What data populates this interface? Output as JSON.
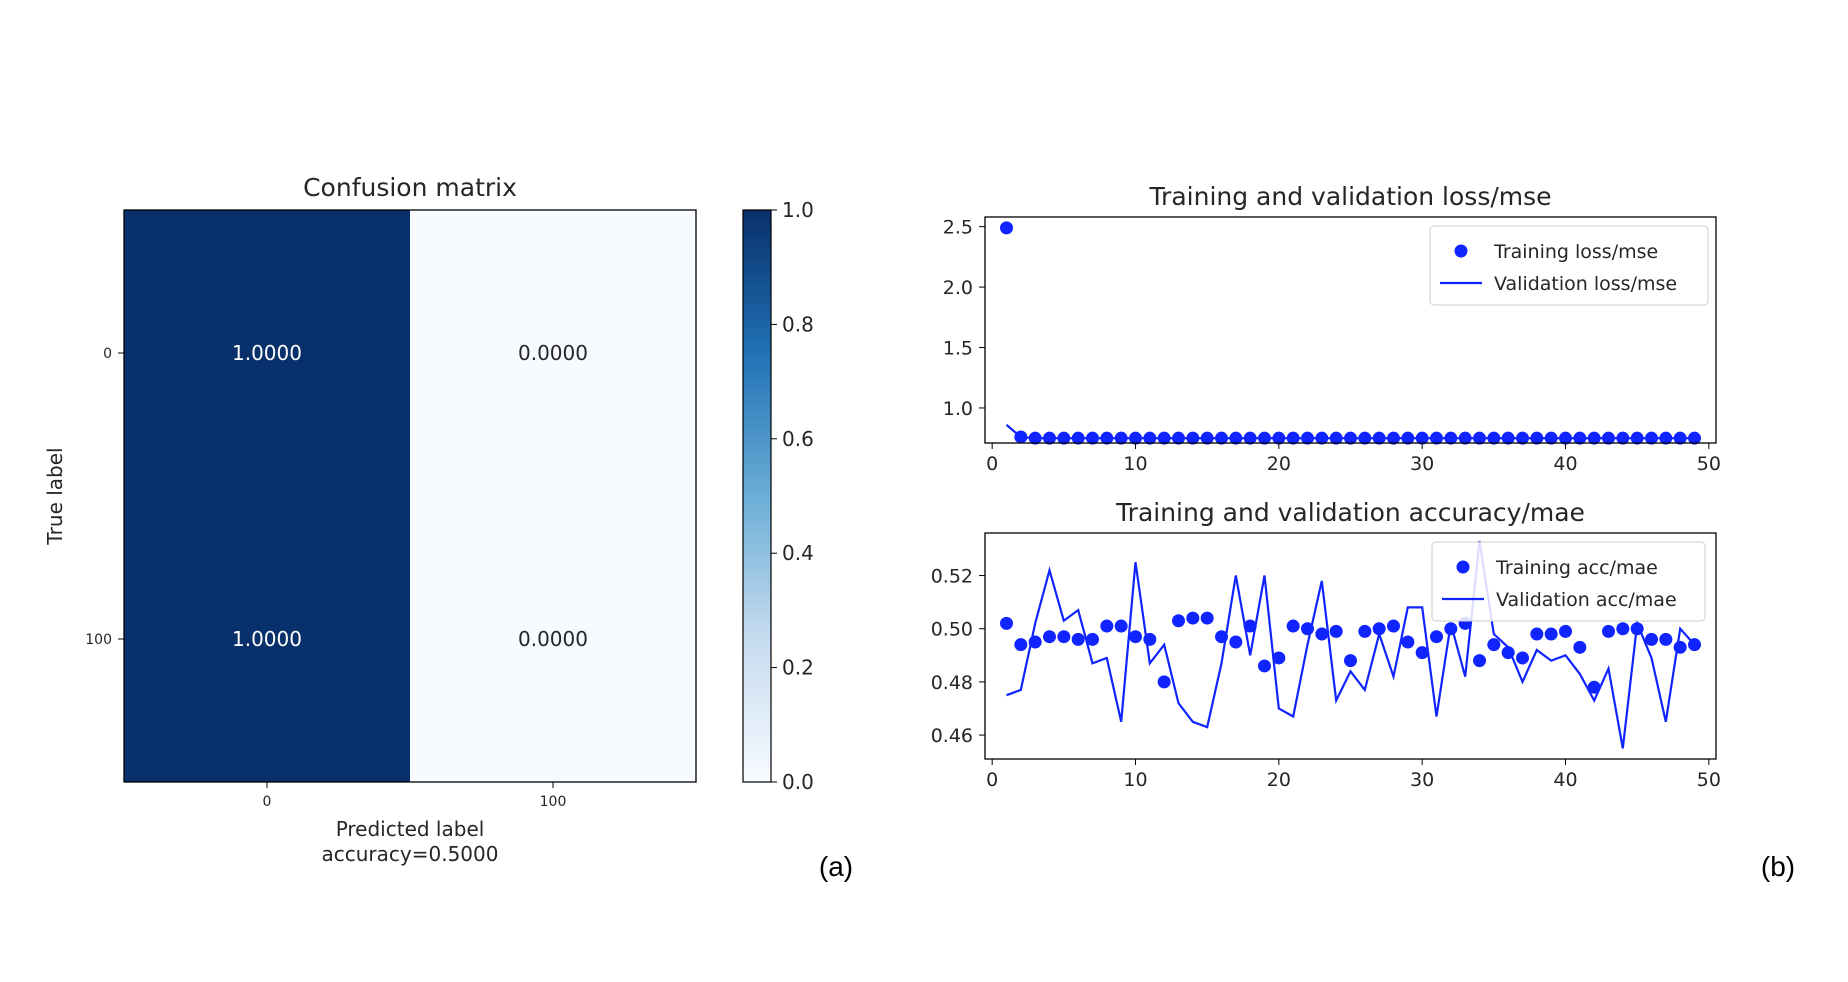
{
  "panel_labels": [
    "(a)",
    "(b)"
  ],
  "colors": {
    "cm_dark": "#08306b",
    "cm_light": "#f7fbff",
    "series": "#1024ff",
    "axis": "#000000"
  },
  "chart_data": [
    {
      "type": "heatmap",
      "title": "Confusion matrix",
      "xlabel": "Predicted label",
      "xlabel_sub": "accuracy=0.5000",
      "ylabel": "True label",
      "x_ticks": [
        "0",
        "100"
      ],
      "y_ticks": [
        "0",
        "100"
      ],
      "matrix": [
        [
          1.0,
          0.0
        ],
        [
          1.0,
          0.0
        ]
      ],
      "cell_labels": [
        [
          "1.0000",
          "0.0000"
        ],
        [
          "1.0000",
          "0.0000"
        ]
      ],
      "colormap": "Blues",
      "colorbar": {
        "range": [
          0,
          1
        ],
        "ticks": [
          "0.0",
          "0.2",
          "0.4",
          "0.6",
          "0.8",
          "1.0"
        ]
      }
    },
    {
      "type": "scatter",
      "title": "Training and validation loss/mse",
      "xlim": [
        -0.5,
        50.5
      ],
      "ylim": [
        0.71,
        2.58
      ],
      "x_ticks": [
        0,
        10,
        20,
        30,
        40,
        50
      ],
      "y_ticks": [
        1.0,
        1.5,
        2.0,
        2.5
      ],
      "y_tick_labels": [
        "1.0",
        "1.5",
        "2.0",
        "2.5"
      ],
      "legend": {
        "position": "upper right"
      },
      "x": [
        1,
        2,
        3,
        4,
        5,
        6,
        7,
        8,
        9,
        10,
        11,
        12,
        13,
        14,
        15,
        16,
        17,
        18,
        19,
        20,
        21,
        22,
        23,
        24,
        25,
        26,
        27,
        28,
        29,
        30,
        31,
        32,
        33,
        34,
        35,
        36,
        37,
        38,
        39,
        40,
        41,
        42,
        43,
        44,
        45,
        46,
        47,
        48,
        49
      ],
      "series": [
        {
          "name": "Training loss/mse",
          "style": "points",
          "values": [
            2.49,
            0.76,
            0.75,
            0.75,
            0.75,
            0.75,
            0.75,
            0.75,
            0.75,
            0.75,
            0.75,
            0.75,
            0.75,
            0.75,
            0.75,
            0.75,
            0.75,
            0.75,
            0.75,
            0.75,
            0.75,
            0.75,
            0.75,
            0.75,
            0.75,
            0.75,
            0.75,
            0.75,
            0.75,
            0.75,
            0.75,
            0.75,
            0.75,
            0.75,
            0.75,
            0.75,
            0.75,
            0.75,
            0.75,
            0.75,
            0.75,
            0.75,
            0.75,
            0.75,
            0.75,
            0.75,
            0.75,
            0.75,
            0.75
          ]
        },
        {
          "name": "Validation loss/mse",
          "style": "line",
          "values": [
            0.86,
            0.76,
            0.75,
            0.75,
            0.75,
            0.75,
            0.75,
            0.75,
            0.75,
            0.75,
            0.75,
            0.75,
            0.75,
            0.75,
            0.75,
            0.75,
            0.75,
            0.75,
            0.75,
            0.75,
            0.75,
            0.75,
            0.75,
            0.75,
            0.75,
            0.75,
            0.75,
            0.75,
            0.75,
            0.75,
            0.75,
            0.75,
            0.75,
            0.75,
            0.75,
            0.75,
            0.75,
            0.75,
            0.75,
            0.75,
            0.75,
            0.75,
            0.75,
            0.75,
            0.75,
            0.75,
            0.75,
            0.75,
            0.75
          ]
        }
      ]
    },
    {
      "type": "scatter",
      "title": "Training and validation accuracy/mae",
      "xlim": [
        -0.5,
        50.5
      ],
      "ylim": [
        0.451,
        0.536
      ],
      "x_ticks": [
        0,
        10,
        20,
        30,
        40,
        50
      ],
      "y_ticks": [
        0.46,
        0.48,
        0.5,
        0.52
      ],
      "y_tick_labels": [
        "0.46",
        "0.48",
        "0.50",
        "0.52"
      ],
      "legend": {
        "position": "upper right"
      },
      "x": [
        1,
        2,
        3,
        4,
        5,
        6,
        7,
        8,
        9,
        10,
        11,
        12,
        13,
        14,
        15,
        16,
        17,
        18,
        19,
        20,
        21,
        22,
        23,
        24,
        25,
        26,
        27,
        28,
        29,
        30,
        31,
        32,
        33,
        34,
        35,
        36,
        37,
        38,
        39,
        40,
        41,
        42,
        43,
        44,
        45,
        46,
        47,
        48,
        49
      ],
      "series": [
        {
          "name": "Training acc/mae",
          "style": "points",
          "values": [
            0.502,
            0.494,
            0.495,
            0.497,
            0.497,
            0.496,
            0.496,
            0.501,
            0.501,
            0.497,
            0.496,
            0.48,
            0.503,
            0.504,
            0.504,
            0.497,
            0.495,
            0.501,
            0.486,
            0.489,
            0.501,
            0.5,
            0.498,
            0.499,
            0.488,
            0.499,
            0.5,
            0.501,
            0.495,
            0.491,
            0.497,
            0.5,
            0.502,
            0.488,
            0.494,
            0.491,
            0.489,
            0.498,
            0.498,
            0.499,
            0.493,
            0.478,
            0.499,
            0.5,
            0.5,
            0.496,
            0.496,
            0.493,
            0.494
          ]
        },
        {
          "name": "Validation acc/mae",
          "style": "line",
          "values": [
            0.475,
            0.477,
            0.502,
            0.522,
            0.503,
            0.507,
            0.487,
            0.489,
            0.465,
            0.525,
            0.487,
            0.494,
            0.472,
            0.465,
            0.463,
            0.487,
            0.52,
            0.49,
            0.52,
            0.47,
            0.467,
            0.494,
            0.518,
            0.473,
            0.484,
            0.477,
            0.498,
            0.482,
            0.508,
            0.508,
            0.467,
            0.502,
            0.482,
            0.533,
            0.498,
            0.493,
            0.48,
            0.492,
            0.488,
            0.49,
            0.483,
            0.473,
            0.485,
            0.455,
            0.502,
            0.489,
            0.465,
            0.5,
            0.494
          ]
        }
      ]
    }
  ]
}
